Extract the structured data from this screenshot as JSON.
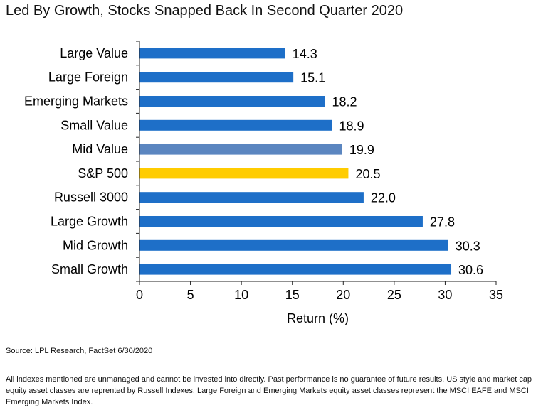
{
  "title": "Led By Growth, Stocks Snapped Back In Second Quarter 2020",
  "source": "Source: LPL Research, FactSet 6/30/2020",
  "footnote": "All indexes mentioned are unmanaged and cannot be invested into directly. Past performance is no guarantee of future results. US style and market cap equity asset classes are reprented by Russell Indexes. Large Foreign and Emerging Markets equity asset classes represent the MSCI EAFE and MSCI Emerging Markets Index.",
  "chart_data": {
    "type": "bar",
    "orientation": "horizontal",
    "categories": [
      "Large Value",
      "Large Foreign",
      "Emerging Markets",
      "Small Value",
      "Mid Value",
      "S&P 500",
      "Russell 3000",
      "Large Growth",
      "Mid Growth",
      "Small Growth"
    ],
    "values": [
      14.3,
      15.1,
      18.2,
      18.9,
      19.9,
      20.5,
      22.0,
      27.8,
      30.3,
      30.6
    ],
    "data_labels": [
      "14.3",
      "15.1",
      "18.2",
      "18.9",
      "19.9",
      "20.5",
      "22.0",
      "27.8",
      "30.3",
      "30.6"
    ],
    "bar_colors": [
      "#1e6fc8",
      "#1e6fc8",
      "#1e6fc8",
      "#1e6fc8",
      "#5b86c0",
      "#ffcc00",
      "#1e6fc8",
      "#1e6fc8",
      "#1e6fc8",
      "#1e6fc8"
    ],
    "xlabel": "Return (%)",
    "ylabel": "",
    "xlim": [
      0,
      35
    ],
    "xticks": [
      0,
      5,
      10,
      15,
      20,
      25,
      30,
      35
    ],
    "grid": false,
    "legend": false
  }
}
